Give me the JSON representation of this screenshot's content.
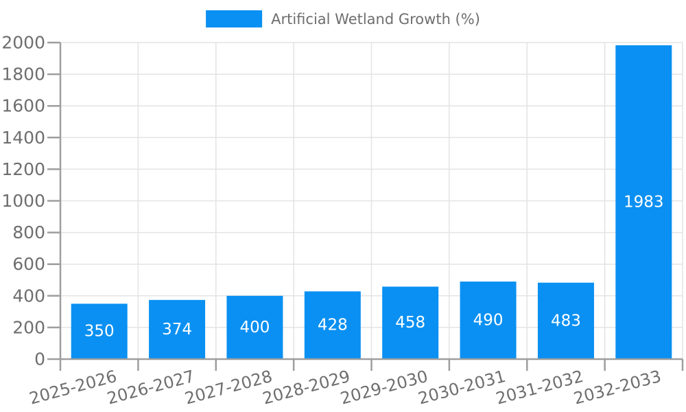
{
  "chart_data": {
    "type": "bar",
    "title": "",
    "legend": "Artificial Wetland Growth (%)",
    "legend_position": "top-center",
    "categories": [
      "2025-2026",
      "2026-2027",
      "2027-2028",
      "2028-2029",
      "2029-2030",
      "2030-2031",
      "2031-2032",
      "2032-2033"
    ],
    "values": [
      350,
      374,
      400,
      428,
      458,
      490,
      483,
      1983
    ],
    "xlabel": "",
    "ylabel": "",
    "ylim": [
      0,
      2000
    ],
    "yticks": [
      0,
      200,
      400,
      600,
      800,
      1000,
      1200,
      1400,
      1600,
      1800,
      2000
    ],
    "grid": true,
    "bar_value_labels": [
      "350",
      "374",
      "400",
      "428",
      "458",
      "490",
      "483",
      "1983"
    ],
    "x_tick_label_rotation_deg": -15
  },
  "colors": {
    "bar": "#0a90f2",
    "axis": "#9e9e9e",
    "grid": "#e3e3e3",
    "tick_label": "#6e6e6e",
    "legend_label": "#6e6e6e",
    "value_label": "#ffffff",
    "background": "#ffffff"
  }
}
